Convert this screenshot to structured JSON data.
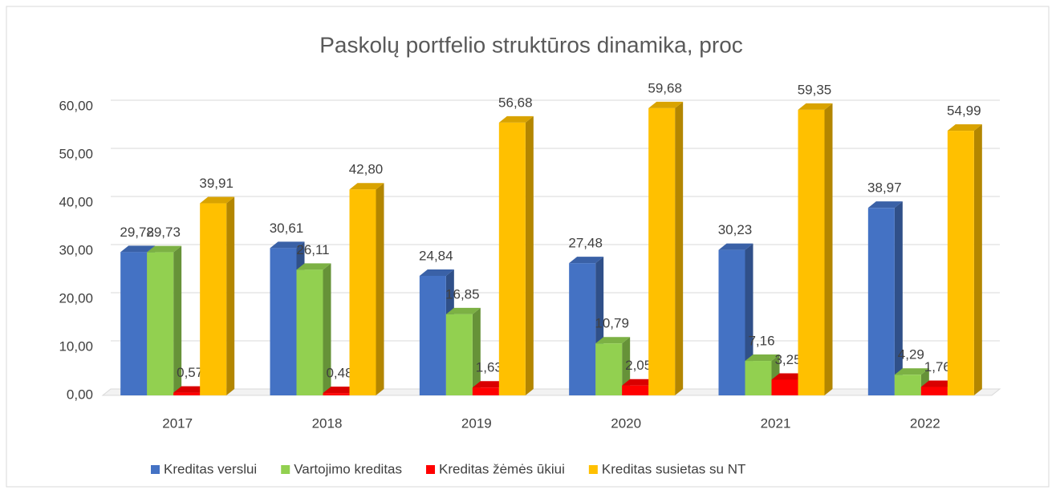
{
  "chart_data": {
    "type": "bar3d",
    "title": "Paskolų portfelio struktūros dinamika, proc",
    "categories": [
      "2017",
      "2018",
      "2019",
      "2020",
      "2021",
      "2022"
    ],
    "series": [
      {
        "name": "Kreditas verslui",
        "color": "#4472c4",
        "values": [
          29.78,
          30.61,
          24.84,
          27.48,
          30.23,
          38.97
        ],
        "value_labels": [
          "29,78",
          "30,61",
          "24,84",
          "27,48",
          "30,23",
          "38,97"
        ]
      },
      {
        "name": "Vartojimo kreditas",
        "color": "#92d050",
        "values": [
          29.73,
          26.11,
          16.85,
          10.79,
          7.16,
          4.29
        ],
        "value_labels": [
          "29,73",
          "26,11",
          "16,85",
          "10,79",
          "7,16",
          "4,29"
        ]
      },
      {
        "name": "Kreditas žėmės ūkiui",
        "color": "#ff0000",
        "values": [
          0.57,
          0.48,
          1.63,
          2.05,
          3.25,
          1.76
        ],
        "value_labels": [
          "0,57",
          "0,48",
          "1,63",
          "2,05",
          "3,25",
          "1,76"
        ]
      },
      {
        "name": "Kreditas susietas su NT",
        "color": "#ffc000",
        "values": [
          39.91,
          42.8,
          56.68,
          59.68,
          59.35,
          54.99
        ],
        "value_labels": [
          "39,91",
          "42,80",
          "56,68",
          "59,68",
          "59,35",
          "54,99"
        ]
      }
    ],
    "ylim": [
      0,
      60
    ],
    "yticks": [
      {
        "value": 0,
        "label": "0,00"
      },
      {
        "value": 10,
        "label": "10,00"
      },
      {
        "value": 20,
        "label": "20,00"
      },
      {
        "value": 30,
        "label": "30,00"
      },
      {
        "value": 40,
        "label": "40,00"
      },
      {
        "value": 50,
        "label": "50,00"
      },
      {
        "value": 60,
        "label": "60,00"
      }
    ],
    "grid": true,
    "legend": "bottom"
  }
}
